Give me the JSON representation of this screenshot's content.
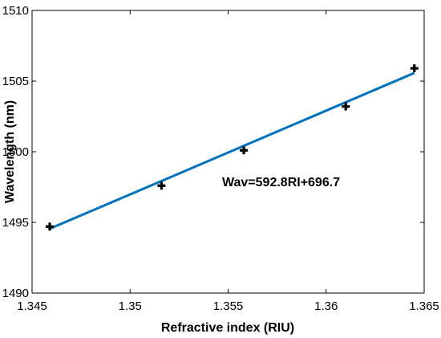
{
  "chart_data": {
    "type": "scatter",
    "xlabel": "Refractive index (RIU)",
    "ylabel": "Wavelength (nm)",
    "xlim": [
      1.345,
      1.365
    ],
    "ylim": [
      1490,
      1510
    ],
    "xticks": [
      "1.345",
      "1.35",
      "1.355",
      "1.36",
      "1.365"
    ],
    "yticks": [
      "1490",
      "1495",
      "1500",
      "1505",
      "1510"
    ],
    "points": [
      {
        "x": 1.3459,
        "y": 1494.7
      },
      {
        "x": 1.3516,
        "y": 1497.6
      },
      {
        "x": 1.3558,
        "y": 1500.1
      },
      {
        "x": 1.361,
        "y": 1503.2
      },
      {
        "x": 1.3645,
        "y": 1505.9
      }
    ],
    "fit": {
      "slope": 592.8,
      "intercept": 696.7,
      "x_range": [
        1.3459,
        1.3645
      ]
    },
    "annotation": "Wav=592.8RI+696.7",
    "fit_color": "#0072BD",
    "marker_color": "#000000",
    "grid": false
  }
}
